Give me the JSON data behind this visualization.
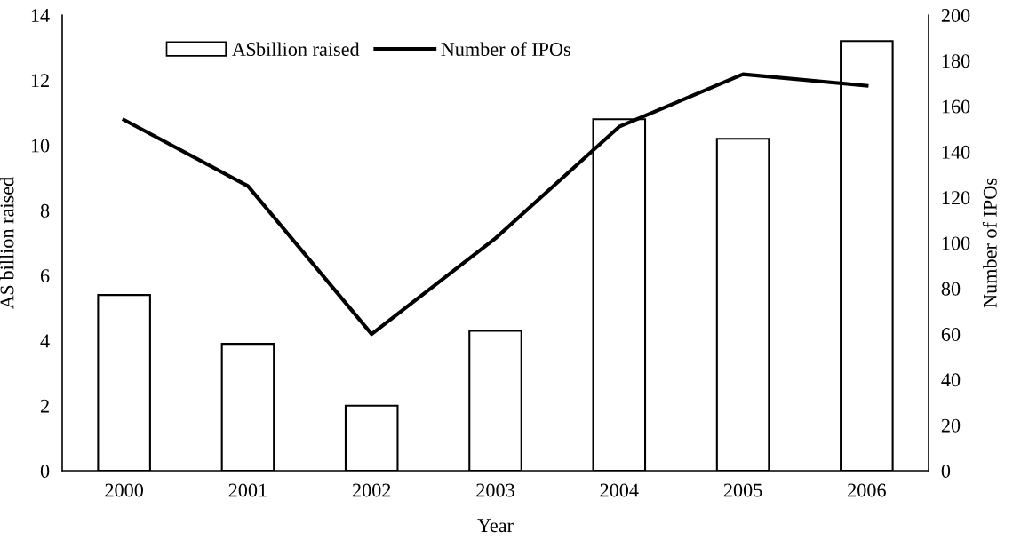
{
  "chart_data": {
    "type": "bar",
    "xlabel": "Year",
    "ylabel": "A$ billion raised",
    "y2label": "Number of IPOs",
    "categories": [
      "2000",
      "2001",
      "2002",
      "2003",
      "2004",
      "2005",
      "2006"
    ],
    "series": [
      {
        "name": "A$billion raised",
        "color": "#ffffff",
        "values": [
          5.4,
          3.9,
          2.0,
          4.3,
          10.8,
          10.2,
          13.2
        ]
      },
      {
        "name": "Number of IPOs",
        "type": "line",
        "axis": "y2",
        "color": "#000000",
        "values": [
          154,
          125,
          60,
          102,
          151,
          174,
          169
        ]
      }
    ],
    "ylim": [
      0,
      14
    ],
    "yticks": [
      0,
      2,
      4,
      6,
      8,
      10,
      12,
      14
    ],
    "y2lim": [
      0,
      200
    ],
    "y2ticks": [
      0,
      20,
      40,
      60,
      80,
      100,
      120,
      140,
      160,
      180,
      200
    ],
    "grid": false,
    "legend": "top left",
    "marker": "none",
    "line_style": "solid"
  }
}
